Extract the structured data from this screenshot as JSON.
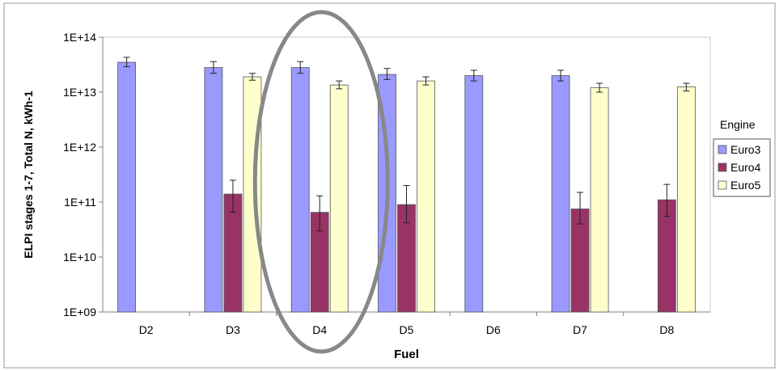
{
  "chart_data": {
    "type": "bar",
    "xlabel": "Fuel",
    "ylabel": "ELPI stages 1-7, Total N, kWh-1",
    "yscale": "log",
    "ylim": [
      1000000000.0,
      100000000000000.0
    ],
    "yticks": [
      "1E+09",
      "1E+10",
      "1E+11",
      "1E+12",
      "1E+13",
      "1E+14"
    ],
    "grid": false,
    "categories": [
      "D2",
      "D3",
      "D4",
      "D5",
      "D6",
      "D7",
      "D8"
    ],
    "legend": {
      "title": "Engine",
      "placement": "right"
    },
    "series": [
      {
        "name": "Euro3",
        "color": "#9999ff",
        "values": [
          35000000000000.0,
          28000000000000.0,
          28000000000000.0,
          21000000000000.0,
          20000000000000.0,
          20000000000000.0,
          null
        ],
        "err_low": [
          29000000000000.0,
          22000000000000.0,
          22000000000000.0,
          17000000000000.0,
          16000000000000.0,
          16000000000000.0,
          null
        ],
        "err_high": [
          43000000000000.0,
          36000000000000.0,
          36000000000000.0,
          27000000000000.0,
          25000000000000.0,
          25000000000000.0,
          null
        ]
      },
      {
        "name": "Euro4",
        "color": "#993366",
        "values": [
          null,
          140000000000.0,
          null,
          90000000000.0,
          null,
          75000000000.0,
          110000000000.0
        ],
        "err_low": [
          null,
          65000000000.0,
          null,
          42000000000.0,
          null,
          40000000000.0,
          55000000000.0
        ],
        "err_high": [
          null,
          250000000000.0,
          null,
          200000000000.0,
          null,
          150000000000.0,
          210000000000.0
        ]
      },
      {
        "name": "Euro5",
        "color": "#ffffcc",
        "values": [
          null,
          19000000000000.0,
          13500000000000.0,
          16000000000000.0,
          null,
          12000000000000.0,
          12500000000000.0
        ],
        "err_low": [
          null,
          16500000000000.0,
          11500000000000.0,
          13500000000000.0,
          null,
          10000000000000.0,
          10500000000000.0
        ],
        "err_high": [
          null,
          22000000000000.0,
          16000000000000.0,
          19000000000000.0,
          null,
          14500000000000.0,
          14500000000000.0
        ]
      }
    ],
    "extra_values": {
      "D4": {
        "series": "Euro4",
        "value": 65000000000.0,
        "err_low": 30000000000.0,
        "err_high": 130000000000.0
      }
    },
    "annotations": [
      {
        "shape": "ellipse",
        "category": "D4",
        "color": "#888888"
      }
    ]
  }
}
